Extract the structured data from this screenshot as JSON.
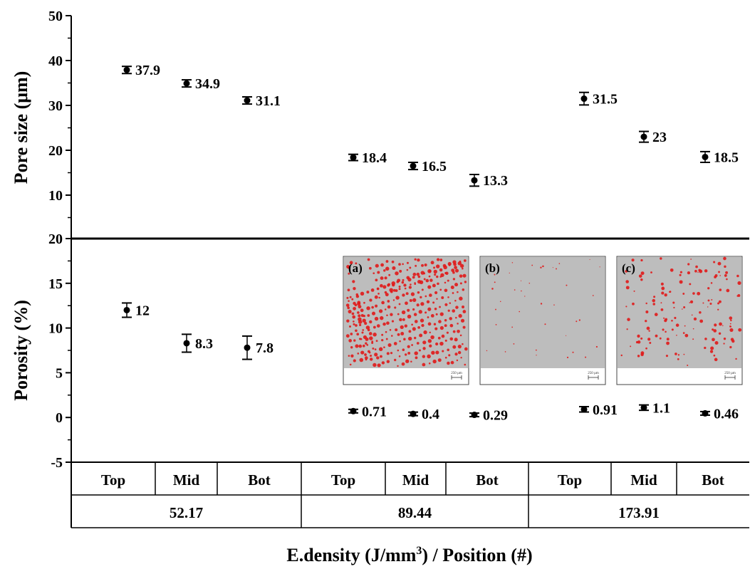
{
  "chart_data": [
    {
      "type": "scatter",
      "ylabel": "Pore size (μm)",
      "ylim": [
        0,
        50
      ],
      "yticks": [
        "10",
        "20",
        "30",
        "40",
        "50"
      ],
      "points": [
        {
          "category": "Top",
          "group": "52.17",
          "value": 37.9,
          "error": 0.8,
          "label": "37.9"
        },
        {
          "category": "Mid",
          "group": "52.17",
          "value": 34.9,
          "error": 0.8,
          "label": "34.9"
        },
        {
          "category": "Bot",
          "group": "52.17",
          "value": 31.1,
          "error": 0.8,
          "label": "31.1"
        },
        {
          "category": "Top",
          "group": "89.44",
          "value": 18.4,
          "error": 0.7,
          "label": "18.4"
        },
        {
          "category": "Mid",
          "group": "89.44",
          "value": 16.5,
          "error": 0.8,
          "label": "16.5"
        },
        {
          "category": "Bot",
          "group": "89.44",
          "value": 13.3,
          "error": 1.3,
          "label": "13.3"
        },
        {
          "category": "Top",
          "group": "173.91",
          "value": 31.5,
          "error": 1.4,
          "label": "31.5"
        },
        {
          "category": "Mid",
          "group": "173.91",
          "value": 23.0,
          "error": 1.2,
          "label": "23"
        },
        {
          "category": "Bot",
          "group": "173.91",
          "value": 18.5,
          "error": 1.2,
          "label": "18.5"
        }
      ]
    },
    {
      "type": "scatter",
      "ylabel": "Porosity (%)",
      "ylim": [
        -5,
        20
      ],
      "yticks": [
        "-5",
        "0",
        "5",
        "10",
        "15",
        "20"
      ],
      "points": [
        {
          "category": "Top",
          "group": "52.17",
          "value": 12.0,
          "error": 0.8,
          "label": "12"
        },
        {
          "category": "Mid",
          "group": "52.17",
          "value": 8.3,
          "error": 1.0,
          "label": "8.3"
        },
        {
          "category": "Bot",
          "group": "52.17",
          "value": 7.8,
          "error": 1.3,
          "label": "7.8"
        },
        {
          "category": "Top",
          "group": "89.44",
          "value": 0.71,
          "error": 0.2,
          "label": "0.71"
        },
        {
          "category": "Mid",
          "group": "89.44",
          "value": 0.4,
          "error": 0.2,
          "label": "0.4"
        },
        {
          "category": "Bot",
          "group": "89.44",
          "value": 0.29,
          "error": 0.2,
          "label": "0.29"
        },
        {
          "category": "Top",
          "group": "173.91",
          "value": 0.91,
          "error": 0.3,
          "label": "0.91"
        },
        {
          "category": "Mid",
          "group": "173.91",
          "value": 1.1,
          "error": 0.3,
          "label": "1.1"
        },
        {
          "category": "Bot",
          "group": "173.91",
          "value": 0.46,
          "error": 0.2,
          "label": "0.46"
        }
      ]
    }
  ],
  "categories": [
    "Top",
    "Mid",
    "Bot",
    "Top",
    "Mid",
    "Bot",
    "Top",
    "Mid",
    "Bot"
  ],
  "groups": [
    "52.17",
    "89.44",
    "173.91"
  ],
  "xlabel": {
    "main": "E.density (J/mm",
    "sup": "3",
    "rest": ") / Position (#)"
  },
  "insets": [
    {
      "label": "(a)",
      "scale_text": "250 µm",
      "pore_density": "high"
    },
    {
      "label": "(b)",
      "scale_text": "250 µm",
      "pore_density": "low"
    },
    {
      "label": "(c)",
      "scale_text": "250 µm",
      "pore_density": "medium"
    }
  ],
  "colors": {
    "marker": "#000000",
    "pore": "#e01818",
    "micrograph_bg": "#bdbdbd"
  }
}
